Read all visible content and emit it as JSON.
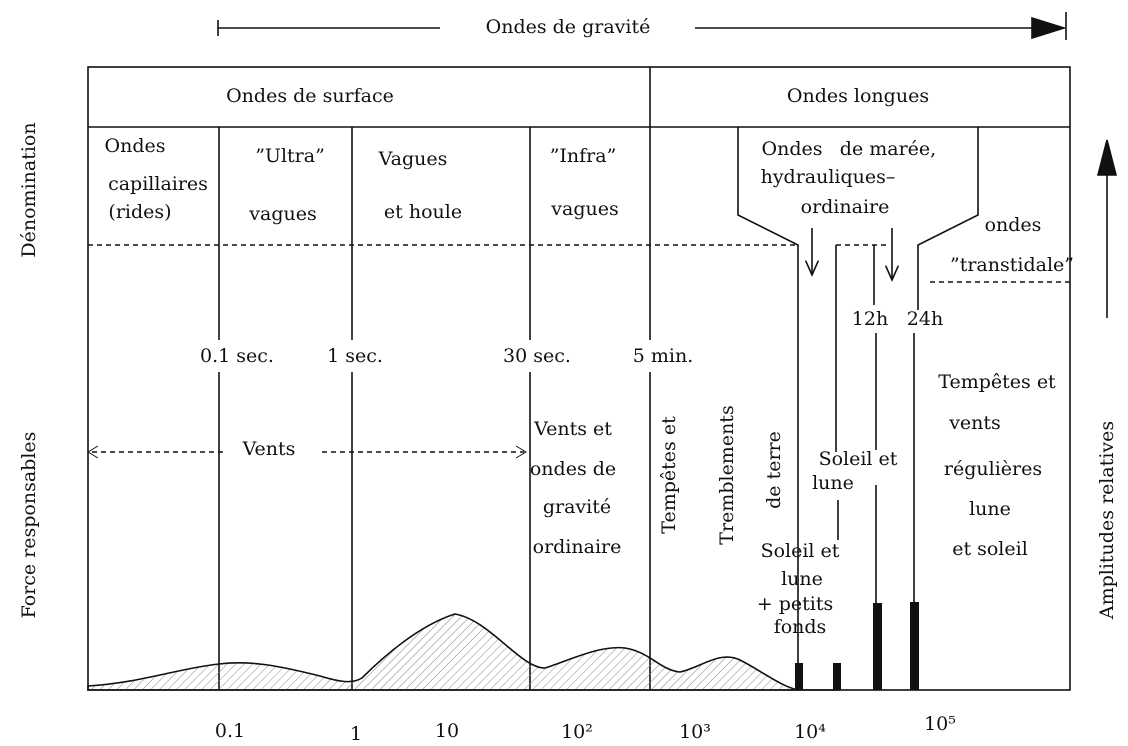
{
  "header": {
    "title": "Ondes de gravité",
    "sections": [
      "Ondes de surface",
      "Ondes longues"
    ]
  },
  "side_labels": {
    "denomination": "Dénomination",
    "forces": "Force responsables",
    "amplitudes": "Amplitudes relatives"
  },
  "names": {
    "capillary": [
      "Ondes",
      "capillaires",
      "(rides)"
    ],
    "ultra": [
      "”Ultra”",
      "vagues"
    ],
    "swell": [
      "Vagues",
      "et houle"
    ],
    "infra": [
      "”Infra”",
      "vagues"
    ],
    "tidal": [
      "Ondes",
      "de marée,",
      "hydrauliques–",
      "ordinaire"
    ],
    "transtidal": [
      "ondes",
      "”transtidale”"
    ]
  },
  "periods": [
    "0.1 sec.",
    "1 sec.",
    "30 sec.",
    "5 min.",
    "12h",
    "24h"
  ],
  "forces": {
    "winds": "Vents",
    "winds_gravity": [
      "Vents et",
      "ondes de",
      "gravité",
      "ordinaire"
    ],
    "storms": "Tempêtes et",
    "earthquakes": [
      "Tremblements",
      "de terre"
    ],
    "sun_moon": [
      "Soleil et",
      "lune"
    ],
    "sun_moon_shallow": [
      "Soleil et",
      "lune",
      "+ petits",
      "fonds"
    ],
    "storms_regular": [
      "Tempêtes et",
      "vents",
      "régulières",
      "lune",
      "et soleil"
    ]
  },
  "x_axis": [
    "0.1",
    "1",
    "10",
    "10²",
    "10³",
    "10⁴",
    "10⁵"
  ]
}
